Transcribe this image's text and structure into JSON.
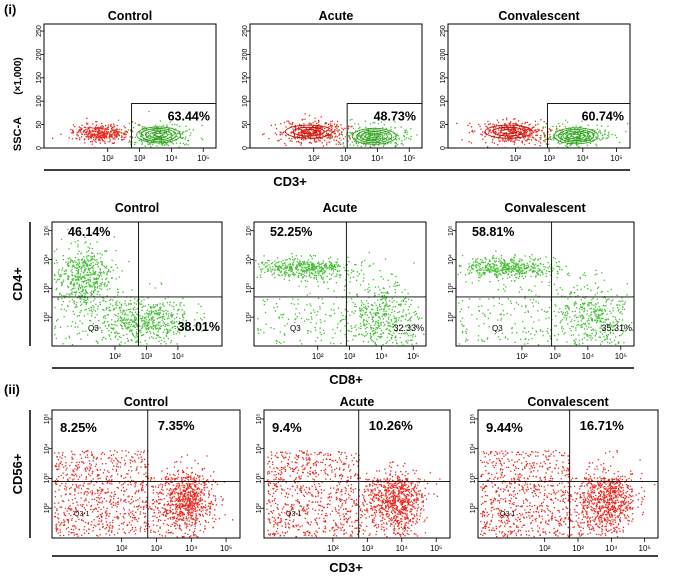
{
  "figure": {
    "section_i_label": "(i)",
    "section_ii_label": "(ii)",
    "colors": {
      "red": "#e8281e",
      "green": "#3fbf2e",
      "black": "#000000"
    },
    "row1_xlabel": "CD3+",
    "row2_xlabel": "CD8+",
    "row3_xlabel": "CD3+"
  },
  "chart_data": [
    {
      "type": "scatter",
      "title": "Control",
      "row": 1,
      "xlabel": "CD3+",
      "ylabel": "SSC-A",
      "y_scale_label": "(×1,000)",
      "y_ticks": [
        "0",
        "50",
        "100",
        "150",
        "200",
        "250"
      ],
      "x_ticks": [
        "10²",
        "10³",
        "10⁴",
        "10⁵"
      ],
      "gate_percent": "63.44%",
      "gate_x_log": 2.75,
      "gate_y_top": 95,
      "red_cluster": {
        "x_log": [
          0.9,
          2.65
        ],
        "y": [
          18,
          48
        ]
      },
      "green_cluster": {
        "x_log_center": 3.6,
        "y_center": 28
      }
    },
    {
      "type": "scatter",
      "title": "Acute",
      "row": 1,
      "gate_percent": "48.73%",
      "gate_x_log": 3.05,
      "gate_y_top": 95,
      "x_ticks": [
        "10²",
        "10³",
        "10⁴",
        "10⁵"
      ],
      "y_ticks": [
        "0",
        "50",
        "100",
        "150",
        "200",
        "250"
      ],
      "red_cluster": {
        "x_log": [
          0.9,
          3.0
        ],
        "y": [
          15,
          55
        ]
      },
      "green_cluster": {
        "x_log_center": 3.9,
        "y_center": 25
      }
    },
    {
      "type": "scatter",
      "title": "Convalescent",
      "row": 1,
      "gate_percent": "60.74%",
      "gate_x_log": 2.95,
      "gate_y_top": 95,
      "x_ticks": [
        "10²",
        "10³",
        "10⁴",
        "10⁵"
      ],
      "y_ticks": [
        "0",
        "50",
        "100",
        "150",
        "200",
        "250"
      ],
      "red_cluster": {
        "x_log": [
          0.9,
          2.9
        ],
        "y": [
          15,
          55
        ]
      },
      "green_cluster": {
        "x_log_center": 3.8,
        "y_center": 26
      }
    },
    {
      "type": "scatter",
      "title": "Control",
      "row": 2,
      "xlabel": "CD8+",
      "ylabel": "CD4+",
      "x_ticks": [
        "10²",
        "10³",
        "10⁴"
      ],
      "y_ticks": [
        "10²",
        "10³",
        "10⁴",
        "10⁵"
      ],
      "upper_left_percent": "46.14%",
      "lower_right_percent": "38.01%",
      "quadrant_label": "Q3",
      "quadrant_x_log": 2.75,
      "quadrant_y_log": 2.7
    },
    {
      "type": "scatter",
      "title": "Acute",
      "row": 2,
      "x_ticks": [
        "10²",
        "10³",
        "10⁴",
        "10⁵"
      ],
      "y_ticks": [
        "10²",
        "10³",
        "10⁴",
        "10⁵"
      ],
      "upper_left_percent": "52.25%",
      "lower_right_percent": "32.33%",
      "quadrant_label": "Q3",
      "quadrant_x_log": 2.9,
      "quadrant_y_log": 2.7
    },
    {
      "type": "scatter",
      "title": "Convalescent",
      "row": 2,
      "x_ticks": [
        "10²",
        "10³",
        "10⁴",
        "10⁵"
      ],
      "y_ticks": [
        "10²",
        "10³",
        "10⁴",
        "10⁵"
      ],
      "upper_left_percent": "58.81%",
      "lower_right_percent": "35.31%",
      "quadrant_label": "Q3",
      "quadrant_x_log": 2.9,
      "quadrant_y_log": 2.7
    },
    {
      "type": "scatter",
      "title": "Control",
      "row": 3,
      "xlabel": "CD3+",
      "ylabel": "CD56+",
      "x_ticks": [
        "10²",
        "10³",
        "10⁴",
        "10⁵"
      ],
      "y_ticks": [
        "10²",
        "10³",
        "10⁴",
        "10⁵"
      ],
      "upper_left_percent": "8.25%",
      "upper_right_percent": "7.35%",
      "quadrant_label": "Q3-1",
      "quadrant_x_log": 2.75,
      "quadrant_y_log": 2.9
    },
    {
      "type": "scatter",
      "title": "Acute",
      "row": 3,
      "x_ticks": [
        "10²",
        "10³",
        "10⁴",
        "10⁵"
      ],
      "y_ticks": [
        "10²",
        "10³",
        "10⁴",
        "10⁵"
      ],
      "upper_left_percent": "9.4%",
      "upper_right_percent": "10.26%",
      "quadrant_label": "Q3-1",
      "quadrant_x_log": 2.75,
      "quadrant_y_log": 2.9
    },
    {
      "type": "scatter",
      "title": "Convalescent",
      "row": 3,
      "x_ticks": [
        "10²",
        "10³",
        "10⁴",
        "10⁵"
      ],
      "y_ticks": [
        "10²",
        "10³",
        "10⁴",
        "10⁵"
      ],
      "upper_left_percent": "9.44%",
      "upper_right_percent": "16.71%",
      "quadrant_label": "Q3-1",
      "quadrant_x_log": 2.75,
      "quadrant_y_log": 2.9
    }
  ]
}
